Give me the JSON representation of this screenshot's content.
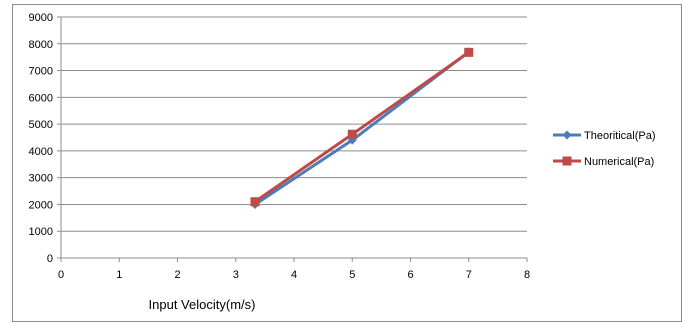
{
  "chart_data": {
    "type": "line",
    "title": "",
    "xlabel": "Input Velocity(m/s)",
    "ylabel": "",
    "xlim": [
      0,
      8
    ],
    "ylim": [
      0,
      9000
    ],
    "x_ticks": [
      0,
      1,
      2,
      3,
      4,
      5,
      6,
      7,
      8
    ],
    "y_ticks": [
      0,
      1000,
      2000,
      3000,
      4000,
      5000,
      6000,
      7000,
      8000,
      9000
    ],
    "grid": "horizontal",
    "legend_position": "right",
    "series": [
      {
        "name": "Theoritical(Pa)",
        "color": "#4a7ebb",
        "marker": "diamond",
        "x": [
          3.33,
          5,
          7
        ],
        "y": [
          2000,
          4400,
          7700
        ]
      },
      {
        "name": "Numerical(Pa)",
        "color": "#be4b48",
        "marker": "square",
        "x": [
          3.33,
          5,
          7
        ],
        "y": [
          2100,
          4620,
          7680
        ]
      }
    ]
  }
}
